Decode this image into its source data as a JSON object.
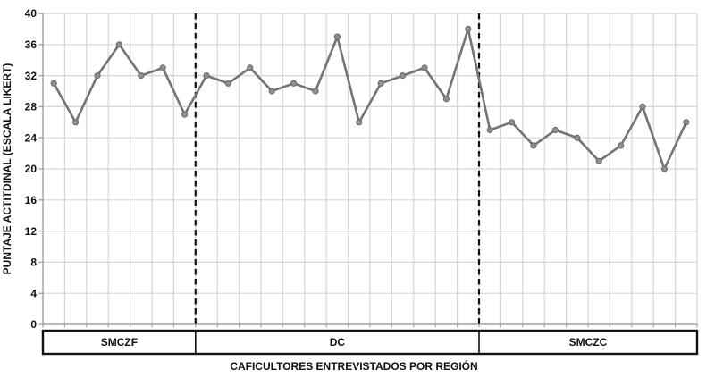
{
  "chart_data": {
    "type": "line",
    "title": "",
    "xlabel": "CAFICULTORES ENTREVISTADOS POR REGIÓN",
    "ylabel": "PUNTAJE ACTITDINAL (ESCALA LIKERT)",
    "ylim": [
      0,
      40
    ],
    "ytick_step": 4,
    "yticks": [
      0,
      4,
      8,
      12,
      16,
      20,
      24,
      28,
      32,
      36,
      40
    ],
    "grid": true,
    "legend": "none",
    "regions": [
      {
        "label": "SMCZF",
        "values": [
          31,
          26,
          32,
          36,
          32,
          33,
          27
        ]
      },
      {
        "label": "DC",
        "values": [
          32,
          31,
          33,
          30,
          31,
          30,
          37,
          26,
          31,
          32,
          33,
          29,
          38
        ]
      },
      {
        "label": "SMCZC",
        "values": [
          25,
          26,
          23,
          25,
          24,
          21,
          23,
          28,
          20,
          26
        ]
      }
    ],
    "series": [
      {
        "name": "puntaje-actitudinal",
        "values": [
          31,
          26,
          32,
          36,
          32,
          33,
          27,
          32,
          31,
          33,
          30,
          31,
          30,
          37,
          26,
          31,
          32,
          33,
          29,
          38,
          25,
          26,
          23,
          25,
          24,
          21,
          23,
          28,
          20,
          26
        ]
      }
    ],
    "separator_style": "dashed",
    "colors": {
      "line": "#747474",
      "marker_fill": "#8f8f8f",
      "marker_stroke": "#696969",
      "grid": "#d6d6d6",
      "axis": "#a3a3a3",
      "separator": "#111111",
      "band_border": "#111111",
      "text": "#111111",
      "background": "#ffffff"
    }
  }
}
